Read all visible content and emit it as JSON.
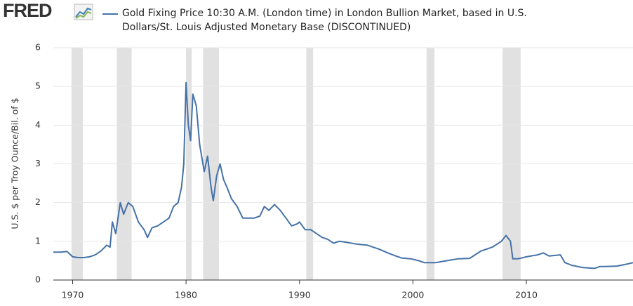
{
  "logo": "FRED",
  "chart_data": {
    "type": "line",
    "series": [
      {
        "name": "Gold Fixing Price 10:30 A.M. (London time) in London Bullion Market, based in U.S. Dollars/St. Louis Adjusted Monetary Base (DISCONTINUED)",
        "color": "#4572a7",
        "x": [
          1968.3,
          1969,
          1969.5,
          1970,
          1970.5,
          1971,
          1971.5,
          1972,
          1972.5,
          1973,
          1973.3,
          1973.5,
          1973.8,
          1974.2,
          1974.5,
          1974.9,
          1975.3,
          1975.8,
          1976.3,
          1976.6,
          1977,
          1977.5,
          1978,
          1978.5,
          1978.9,
          1979.3,
          1979.6,
          1979.8,
          1980.0,
          1980.2,
          1980.4,
          1980.6,
          1980.9,
          1981.2,
          1981.6,
          1981.9,
          1982.2,
          1982.4,
          1982.7,
          1983.0,
          1983.3,
          1983.6,
          1984,
          1984.5,
          1985,
          1985.5,
          1986,
          1986.5,
          1986.9,
          1987.3,
          1987.8,
          1988.3,
          1988.8,
          1989.3,
          1989.8,
          1990,
          1990.5,
          1991,
          1991.5,
          1992,
          1992.5,
          1993,
          1993.5,
          1994,
          1995,
          1996,
          1997,
          1997.8,
          1998.5,
          1999,
          1999.8,
          2000.5,
          2001,
          2002,
          2003,
          2004,
          2005,
          2006,
          2006.5,
          2007,
          2007.8,
          2008.2,
          2008.6,
          2008.8,
          2009.3,
          2010,
          2011,
          2011.5,
          2012,
          2013,
          2013.4,
          2014,
          2015,
          2016,
          2016.5,
          2017,
          2018,
          2019,
          2019.4
        ],
        "values": [
          0.72,
          0.72,
          0.74,
          0.6,
          0.58,
          0.58,
          0.6,
          0.65,
          0.75,
          0.9,
          0.85,
          1.5,
          1.2,
          2.0,
          1.7,
          2.0,
          1.9,
          1.5,
          1.3,
          1.1,
          1.35,
          1.4,
          1.5,
          1.6,
          1.9,
          2.0,
          2.4,
          3.0,
          5.1,
          4.0,
          3.6,
          4.8,
          4.5,
          3.5,
          2.8,
          3.2,
          2.4,
          2.05,
          2.7,
          3.0,
          2.6,
          2.4,
          2.1,
          1.9,
          1.6,
          1.6,
          1.6,
          1.65,
          1.9,
          1.8,
          1.95,
          1.8,
          1.6,
          1.4,
          1.45,
          1.5,
          1.3,
          1.3,
          1.2,
          1.1,
          1.05,
          0.95,
          1.0,
          0.98,
          0.93,
          0.9,
          0.8,
          0.7,
          0.62,
          0.57,
          0.55,
          0.5,
          0.45,
          0.45,
          0.5,
          0.55,
          0.56,
          0.75,
          0.8,
          0.85,
          1.0,
          1.15,
          1.0,
          0.55,
          0.55,
          0.6,
          0.65,
          0.7,
          0.62,
          0.65,
          0.45,
          0.38,
          0.32,
          0.3,
          0.35,
          0.35,
          0.36,
          0.42,
          0.45
        ]
      }
    ],
    "recessions": [
      [
        1969.9,
        1970.9
      ],
      [
        1973.9,
        1975.2
      ],
      [
        1980.0,
        1980.5
      ],
      [
        1981.5,
        1982.9
      ],
      [
        1990.6,
        1991.2
      ],
      [
        2001.2,
        2001.9
      ],
      [
        2007.9,
        2009.5
      ]
    ],
    "recession_color": "#e1e1e1",
    "ylabel": "U.S. $ per Troy Ounce/Bil. of $",
    "xlim": [
      1968.3,
      2019.4
    ],
    "xticks": [
      1970,
      1980,
      1990,
      2000,
      2010
    ],
    "ylim": [
      0,
      6
    ],
    "yticks": [
      0,
      1,
      2,
      3,
      4,
      5,
      6
    ],
    "grid": true
  }
}
